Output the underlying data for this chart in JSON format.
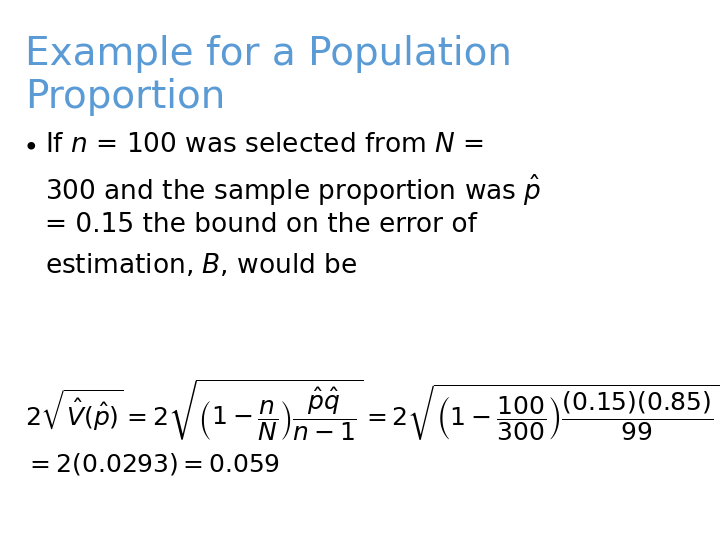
{
  "background_color": "#ffffff",
  "title_line1": "Example for a Population",
  "title_line2": "Proportion",
  "title_color": "#5B9BD5",
  "title_fontsize": 28,
  "body_fontsize": 19,
  "math_fontsize": 18,
  "text_color": "#000000",
  "bullet_text_line1": "If $n$ = 100 was selected from $N$ =",
  "bullet_text_line2": "300 and the sample proportion was $\\hat{p}$",
  "bullet_text_line3": "= 0.15 the bound on the error of",
  "bullet_text_line4": "estimation, $B$, would be",
  "formula2": "$=2(0.0293)=0.059$"
}
